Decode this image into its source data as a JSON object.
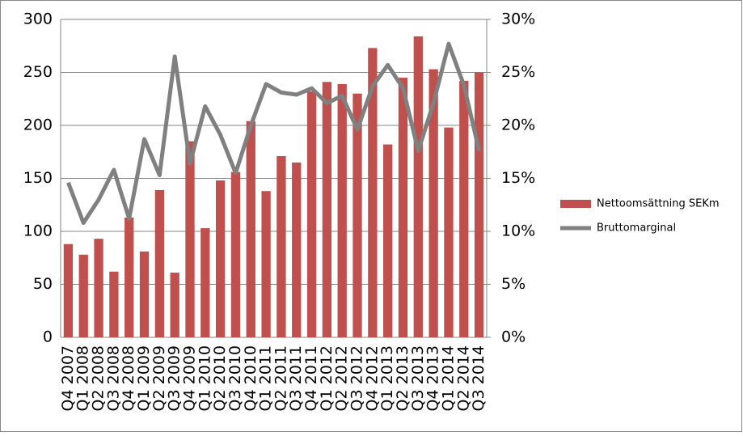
{
  "chart_data": {
    "type": "bar",
    "categories": [
      "Q4 2007",
      "Q1 2008",
      "Q2 2008",
      "Q3 2008",
      "Q4 2008",
      "Q1 2009",
      "Q2 2009",
      "Q3 2009",
      "Q4 2009",
      "Q1 2010",
      "Q2 2010",
      "Q3 2010",
      "Q4 2010",
      "Q1 2011",
      "Q2 2011",
      "Q3 2011",
      "Q4 2011",
      "Q1 2012",
      "Q2 2012",
      "Q3 2012",
      "Q4 2012",
      "Q1 2013",
      "Q2 2013",
      "Q3 2013",
      "Q4 2013",
      "Q1 2014",
      "Q2 2014",
      "Q3 2014"
    ],
    "series": [
      {
        "name": "Nettoomsättning SEKm",
        "type": "bar",
        "color": "#c0504d",
        "values": [
          88,
          78,
          93,
          62,
          113,
          81,
          139,
          61,
          185,
          103,
          148,
          156,
          204,
          138,
          171,
          165,
          232,
          241,
          239,
          230,
          273,
          182,
          245,
          284,
          253,
          198,
          242,
          250
        ]
      },
      {
        "name": "Bruttomarginal",
        "type": "line",
        "axis": "y2",
        "color": "#808080",
        "values": [
          14.6,
          10.8,
          13.0,
          15.8,
          11.2,
          18.7,
          15.3,
          26.5,
          16.4,
          21.8,
          19.1,
          15.5,
          20.0,
          23.9,
          23.1,
          22.9,
          23.5,
          22.1,
          22.8,
          19.6,
          23.7,
          25.7,
          23.5,
          17.6,
          22.1,
          27.7,
          23.8,
          17.6
        ]
      }
    ],
    "ylim": [
      0,
      300
    ],
    "yticks": [
      0,
      50,
      100,
      150,
      200,
      250,
      300
    ],
    "y2lim": [
      0,
      30
    ],
    "y2ticks": [
      {
        "value": 0,
        "label": "0%"
      },
      {
        "value": 5,
        "label": "5%"
      },
      {
        "value": 10,
        "label": "10%"
      },
      {
        "value": 15,
        "label": "15%"
      },
      {
        "value": 20,
        "label": "20%"
      },
      {
        "value": 25,
        "label": "25%"
      },
      {
        "value": 30,
        "label": "30%"
      }
    ],
    "grid": true,
    "legend": "right"
  }
}
